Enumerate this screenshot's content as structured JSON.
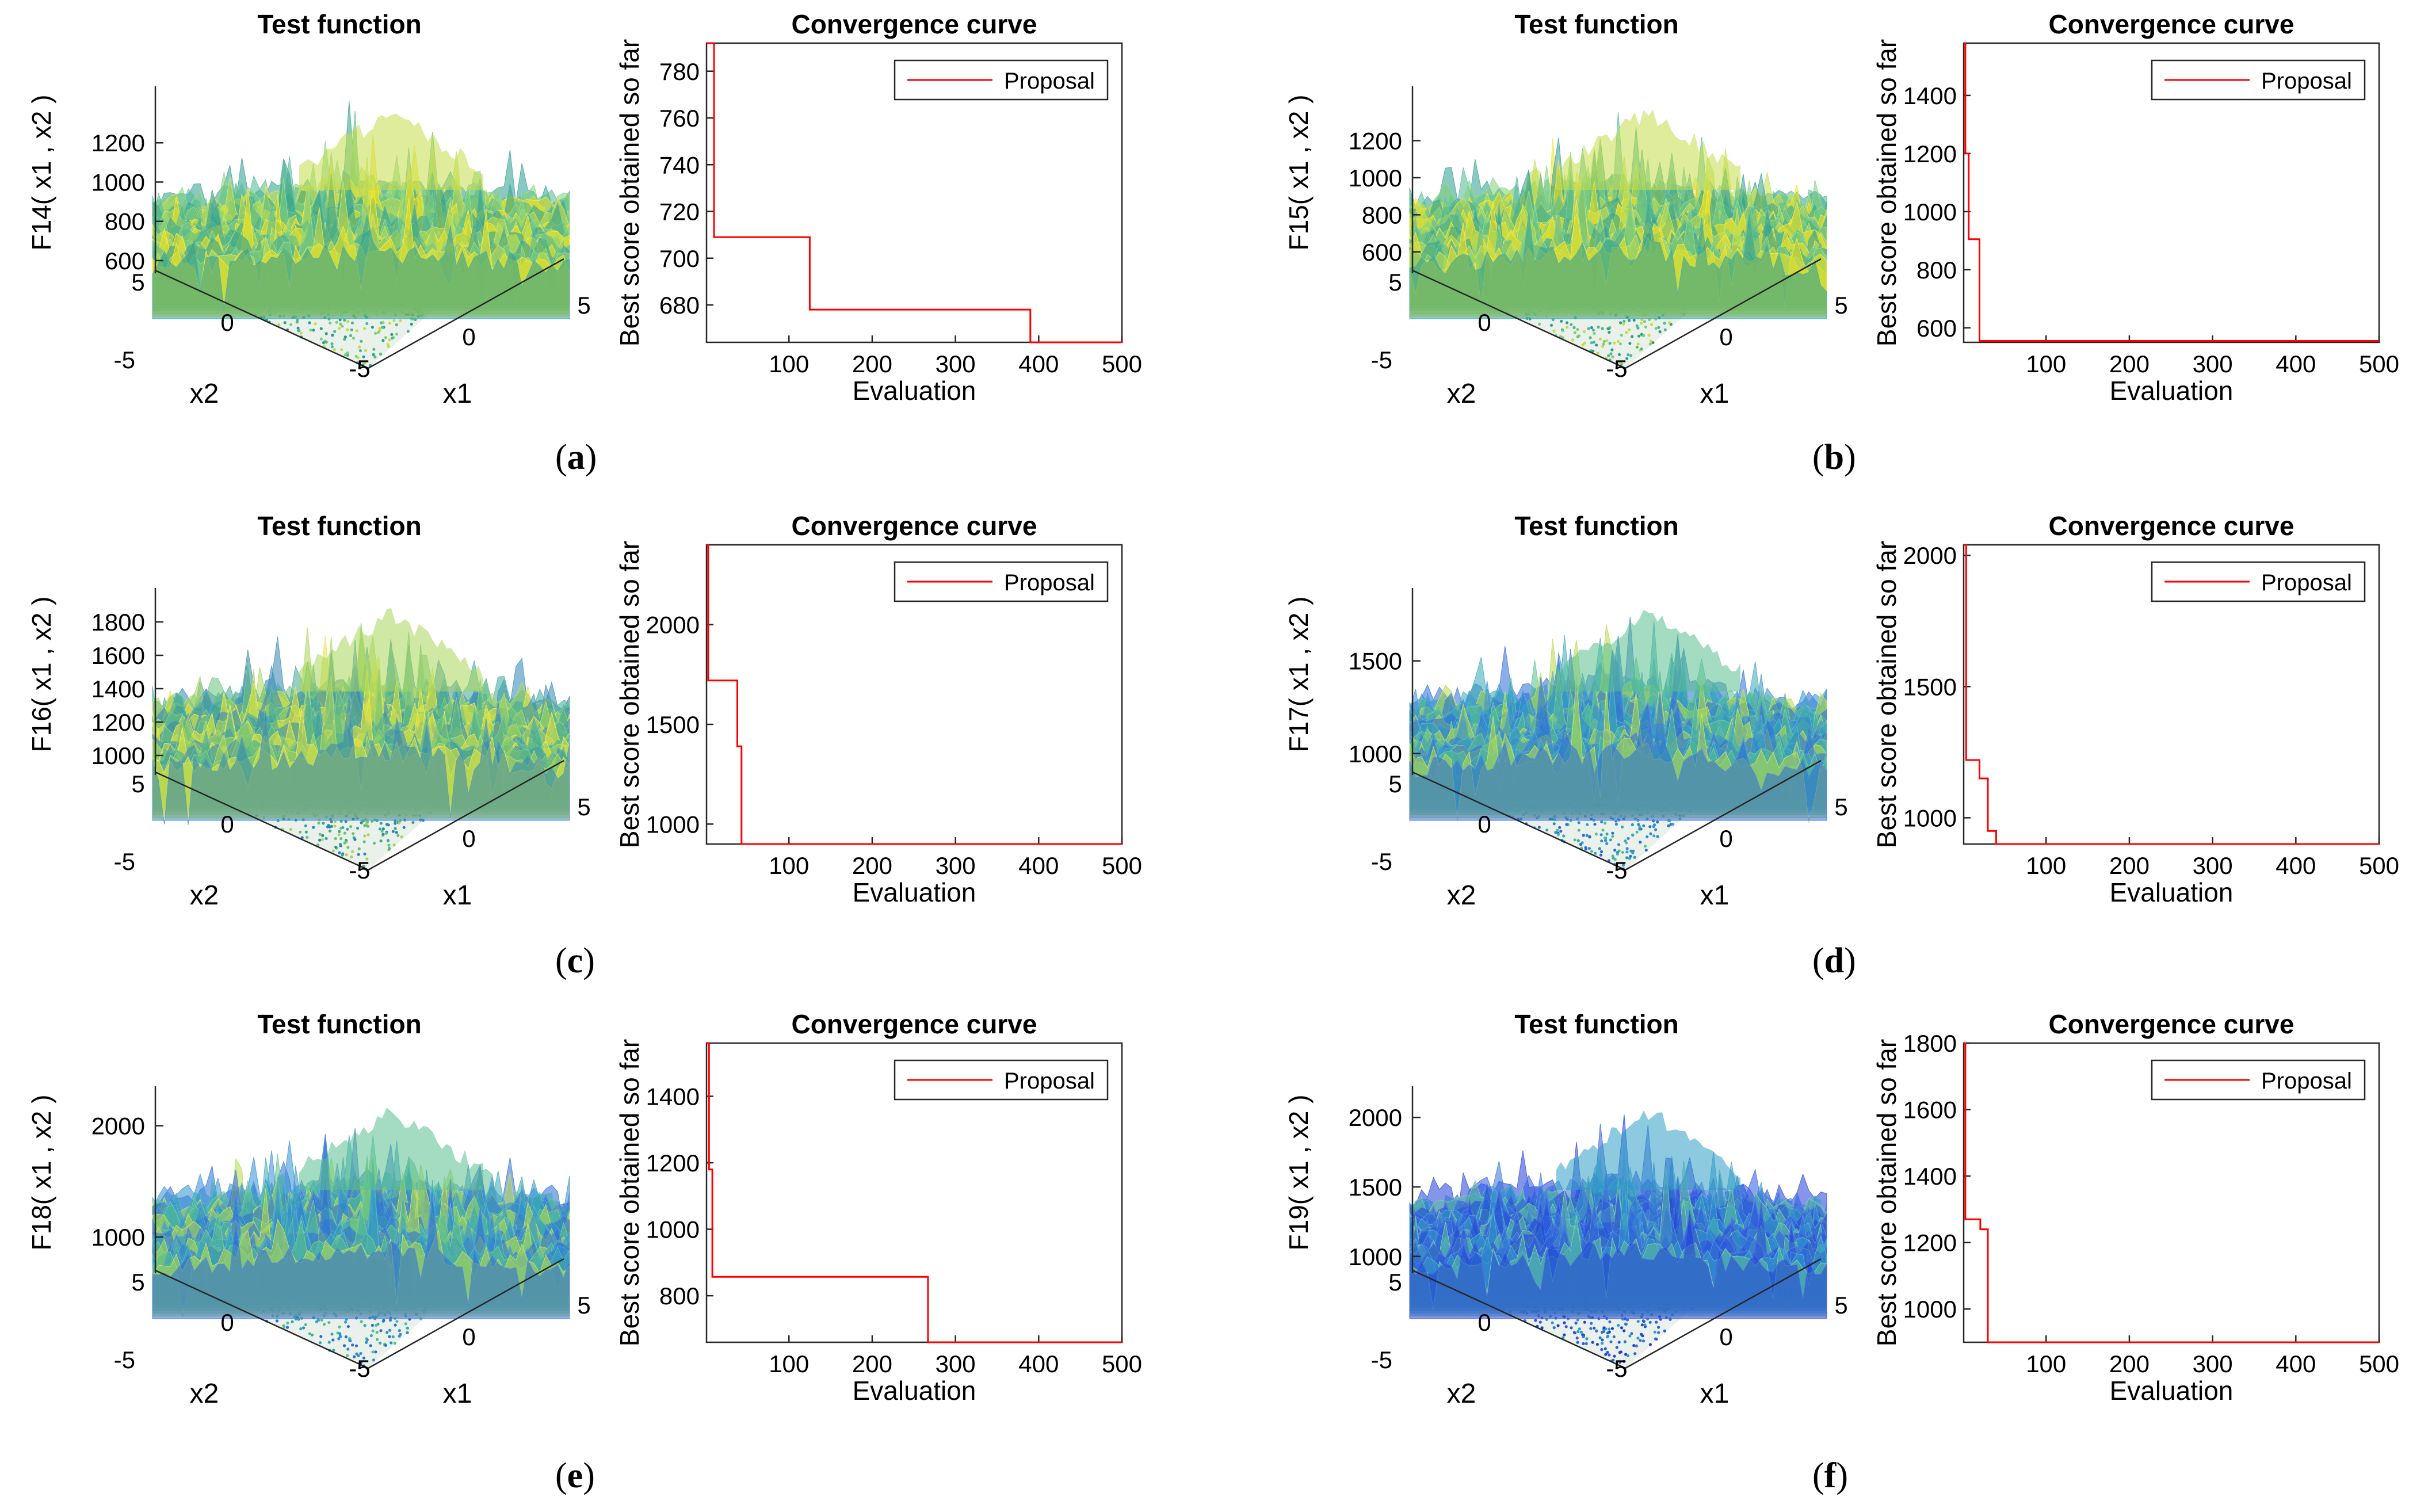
{
  "figure": {
    "panels": [
      {
        "label_open": "(",
        "label_letter": "a",
        "label_close": ")"
      },
      {
        "label_open": "(",
        "label_letter": "b",
        "label_close": ")"
      },
      {
        "label_open": "(",
        "label_letter": "c",
        "label_close": ")"
      },
      {
        "label_open": "(",
        "label_letter": "d",
        "label_close": ")"
      },
      {
        "label_open": "(",
        "label_letter": "e",
        "label_close": ")"
      },
      {
        "label_open": "(",
        "label_letter": "f",
        "label_close": ")"
      }
    ]
  },
  "chart_data": [
    {
      "type": "surface",
      "panel": "a",
      "title": "Test function",
      "zlabel": "F14( x1 , x2 )",
      "xlabel": "x1",
      "ylabel": "x2",
      "zticks": [
        600,
        800,
        1000,
        1200
      ],
      "zlim": [
        550,
        1400
      ],
      "xticks": [
        -5,
        0,
        5
      ],
      "yticks": [
        -5,
        0,
        5
      ],
      "colormap": "viridis-green-yellow"
    },
    {
      "type": "line",
      "panel": "a",
      "title": "Convergence curve",
      "xlabel": "Evaluation",
      "ylabel": "Best score obtained so far",
      "xlim": [
        1,
        500
      ],
      "ylim": [
        664,
        792
      ],
      "xticks": [
        100,
        200,
        300,
        400,
        500
      ],
      "yticks": [
        680,
        700,
        720,
        740,
        760,
        780
      ],
      "series": [
        {
          "name": "Proposal",
          "color": "#ff0000",
          "x": [
            1,
            10,
            10,
            125,
            125,
            390,
            390,
            500
          ],
          "y": [
            792,
            792,
            709,
            709,
            678,
            678,
            664,
            664
          ]
        }
      ]
    },
    {
      "type": "surface",
      "panel": "b",
      "title": "Test function",
      "zlabel": "F15( x1 , x2 )",
      "xlabel": "x1",
      "ylabel": "x2",
      "zticks": [
        600,
        800,
        1000,
        1200
      ],
      "zlim": [
        500,
        1400
      ],
      "xticks": [
        -5,
        0,
        5
      ],
      "yticks": [
        -5,
        0,
        5
      ],
      "colormap": "viridis-green-yellow"
    },
    {
      "type": "line",
      "panel": "b",
      "title": "Convergence curve",
      "xlabel": "Evaluation",
      "ylabel": "Best score obtained so far",
      "xlim": [
        1,
        500
      ],
      "ylim": [
        550,
        1580
      ],
      "xticks": [
        100,
        200,
        300,
        400,
        500
      ],
      "yticks": [
        600,
        800,
        1000,
        1200,
        1400
      ],
      "series": [
        {
          "name": "Proposal",
          "color": "#ff0000",
          "x": [
            1,
            3,
            3,
            7,
            7,
            20,
            20,
            500
          ],
          "y": [
            1580,
            1580,
            1200,
            1200,
            905,
            905,
            555,
            555
          ]
        }
      ]
    },
    {
      "type": "surface",
      "panel": "c",
      "title": "Test function",
      "zlabel": "F16( x1 , x2 )",
      "xlabel": "x1",
      "ylabel": "x2",
      "zticks": [
        1000,
        1200,
        1400,
        1600,
        1800
      ],
      "zlim": [
        900,
        1900
      ],
      "xticks": [
        -5,
        0,
        5
      ],
      "yticks": [
        -5,
        0,
        5
      ],
      "colormap": "viridis-blue-green"
    },
    {
      "type": "line",
      "panel": "c",
      "title": "Convergence curve",
      "xlabel": "Evaluation",
      "ylabel": "Best score obtained so far",
      "xlim": [
        1,
        500
      ],
      "ylim": [
        900,
        2400
      ],
      "xticks": [
        100,
        200,
        300,
        400,
        500
      ],
      "yticks": [
        1000,
        1500,
        2000
      ],
      "series": [
        {
          "name": "Proposal",
          "color": "#ff0000",
          "x": [
            1,
            3,
            3,
            38,
            38,
            43,
            43,
            500
          ],
          "y": [
            2400,
            2400,
            1720,
            1720,
            1390,
            1390,
            900,
            900
          ]
        }
      ]
    },
    {
      "type": "surface",
      "panel": "d",
      "title": "Test function",
      "zlabel": "F17( x1 , x2 )",
      "xlabel": "x1",
      "ylabel": "x2",
      "zticks": [
        1000,
        1500
      ],
      "zlim": [
        900,
        1800
      ],
      "xticks": [
        -5,
        0,
        5
      ],
      "yticks": [
        -5,
        0,
        5
      ],
      "colormap": "blue-dominant"
    },
    {
      "type": "line",
      "panel": "d",
      "title": "Convergence curve",
      "xlabel": "Evaluation",
      "ylabel": "Best score obtained so far",
      "xlim": [
        1,
        500
      ],
      "ylim": [
        900,
        2040
      ],
      "xticks": [
        100,
        200,
        300,
        400,
        500
      ],
      "yticks": [
        1000,
        1500,
        2000
      ],
      "series": [
        {
          "name": "Proposal",
          "color": "#ff0000",
          "x": [
            1,
            4,
            4,
            20,
            20,
            30,
            30,
            40,
            40,
            500
          ],
          "y": [
            2040,
            2040,
            1220,
            1220,
            1150,
            1150,
            950,
            950,
            900,
            900
          ]
        }
      ]
    },
    {
      "type": "surface",
      "panel": "e",
      "title": "Test function",
      "zlabel": "F18( x1 , x2 )",
      "xlabel": "x1",
      "ylabel": "x2",
      "zticks": [
        1000,
        2000
      ],
      "zlim": [
        700,
        2200
      ],
      "xticks": [
        -5,
        0,
        5
      ],
      "yticks": [
        -5,
        0,
        5
      ],
      "colormap": "blue-dominant"
    },
    {
      "type": "line",
      "panel": "e",
      "title": "Convergence curve",
      "xlabel": "Evaluation",
      "ylabel": "Best score obtained so far",
      "xlim": [
        1,
        500
      ],
      "ylim": [
        660,
        1560
      ],
      "xticks": [
        100,
        200,
        300,
        400,
        500
      ],
      "yticks": [
        800,
        1000,
        1200,
        1400
      ],
      "series": [
        {
          "name": "Proposal",
          "color": "#ff0000",
          "x": [
            1,
            4,
            4,
            8,
            8,
            267,
            267,
            500
          ],
          "y": [
            1560,
            1560,
            1180,
            1180,
            857,
            857,
            660,
            660
          ]
        }
      ]
    },
    {
      "type": "surface",
      "panel": "f",
      "title": "Test function",
      "zlabel": "F19( x1 , x2 )",
      "xlabel": "x1",
      "ylabel": "x2",
      "zticks": [
        1000,
        1500,
        2000
      ],
      "zlim": [
        900,
        2100
      ],
      "xticks": [
        -5,
        0,
        5
      ],
      "yticks": [
        -5,
        0,
        5
      ],
      "colormap": "deep-blue"
    },
    {
      "type": "line",
      "panel": "f",
      "title": "Convergence curve",
      "xlabel": "Evaluation",
      "ylabel": "Best score obtained so far",
      "xlim": [
        1,
        500
      ],
      "ylim": [
        900,
        1800
      ],
      "xticks": [
        100,
        200,
        300,
        400,
        500
      ],
      "yticks": [
        1000,
        1200,
        1400,
        1600,
        1800
      ],
      "series": [
        {
          "name": "Proposal",
          "color": "#ff0000",
          "x": [
            1,
            3,
            3,
            21,
            21,
            30,
            30,
            500
          ],
          "y": [
            1800,
            1800,
            1270,
            1270,
            1240,
            1240,
            900,
            900
          ]
        }
      ]
    }
  ]
}
